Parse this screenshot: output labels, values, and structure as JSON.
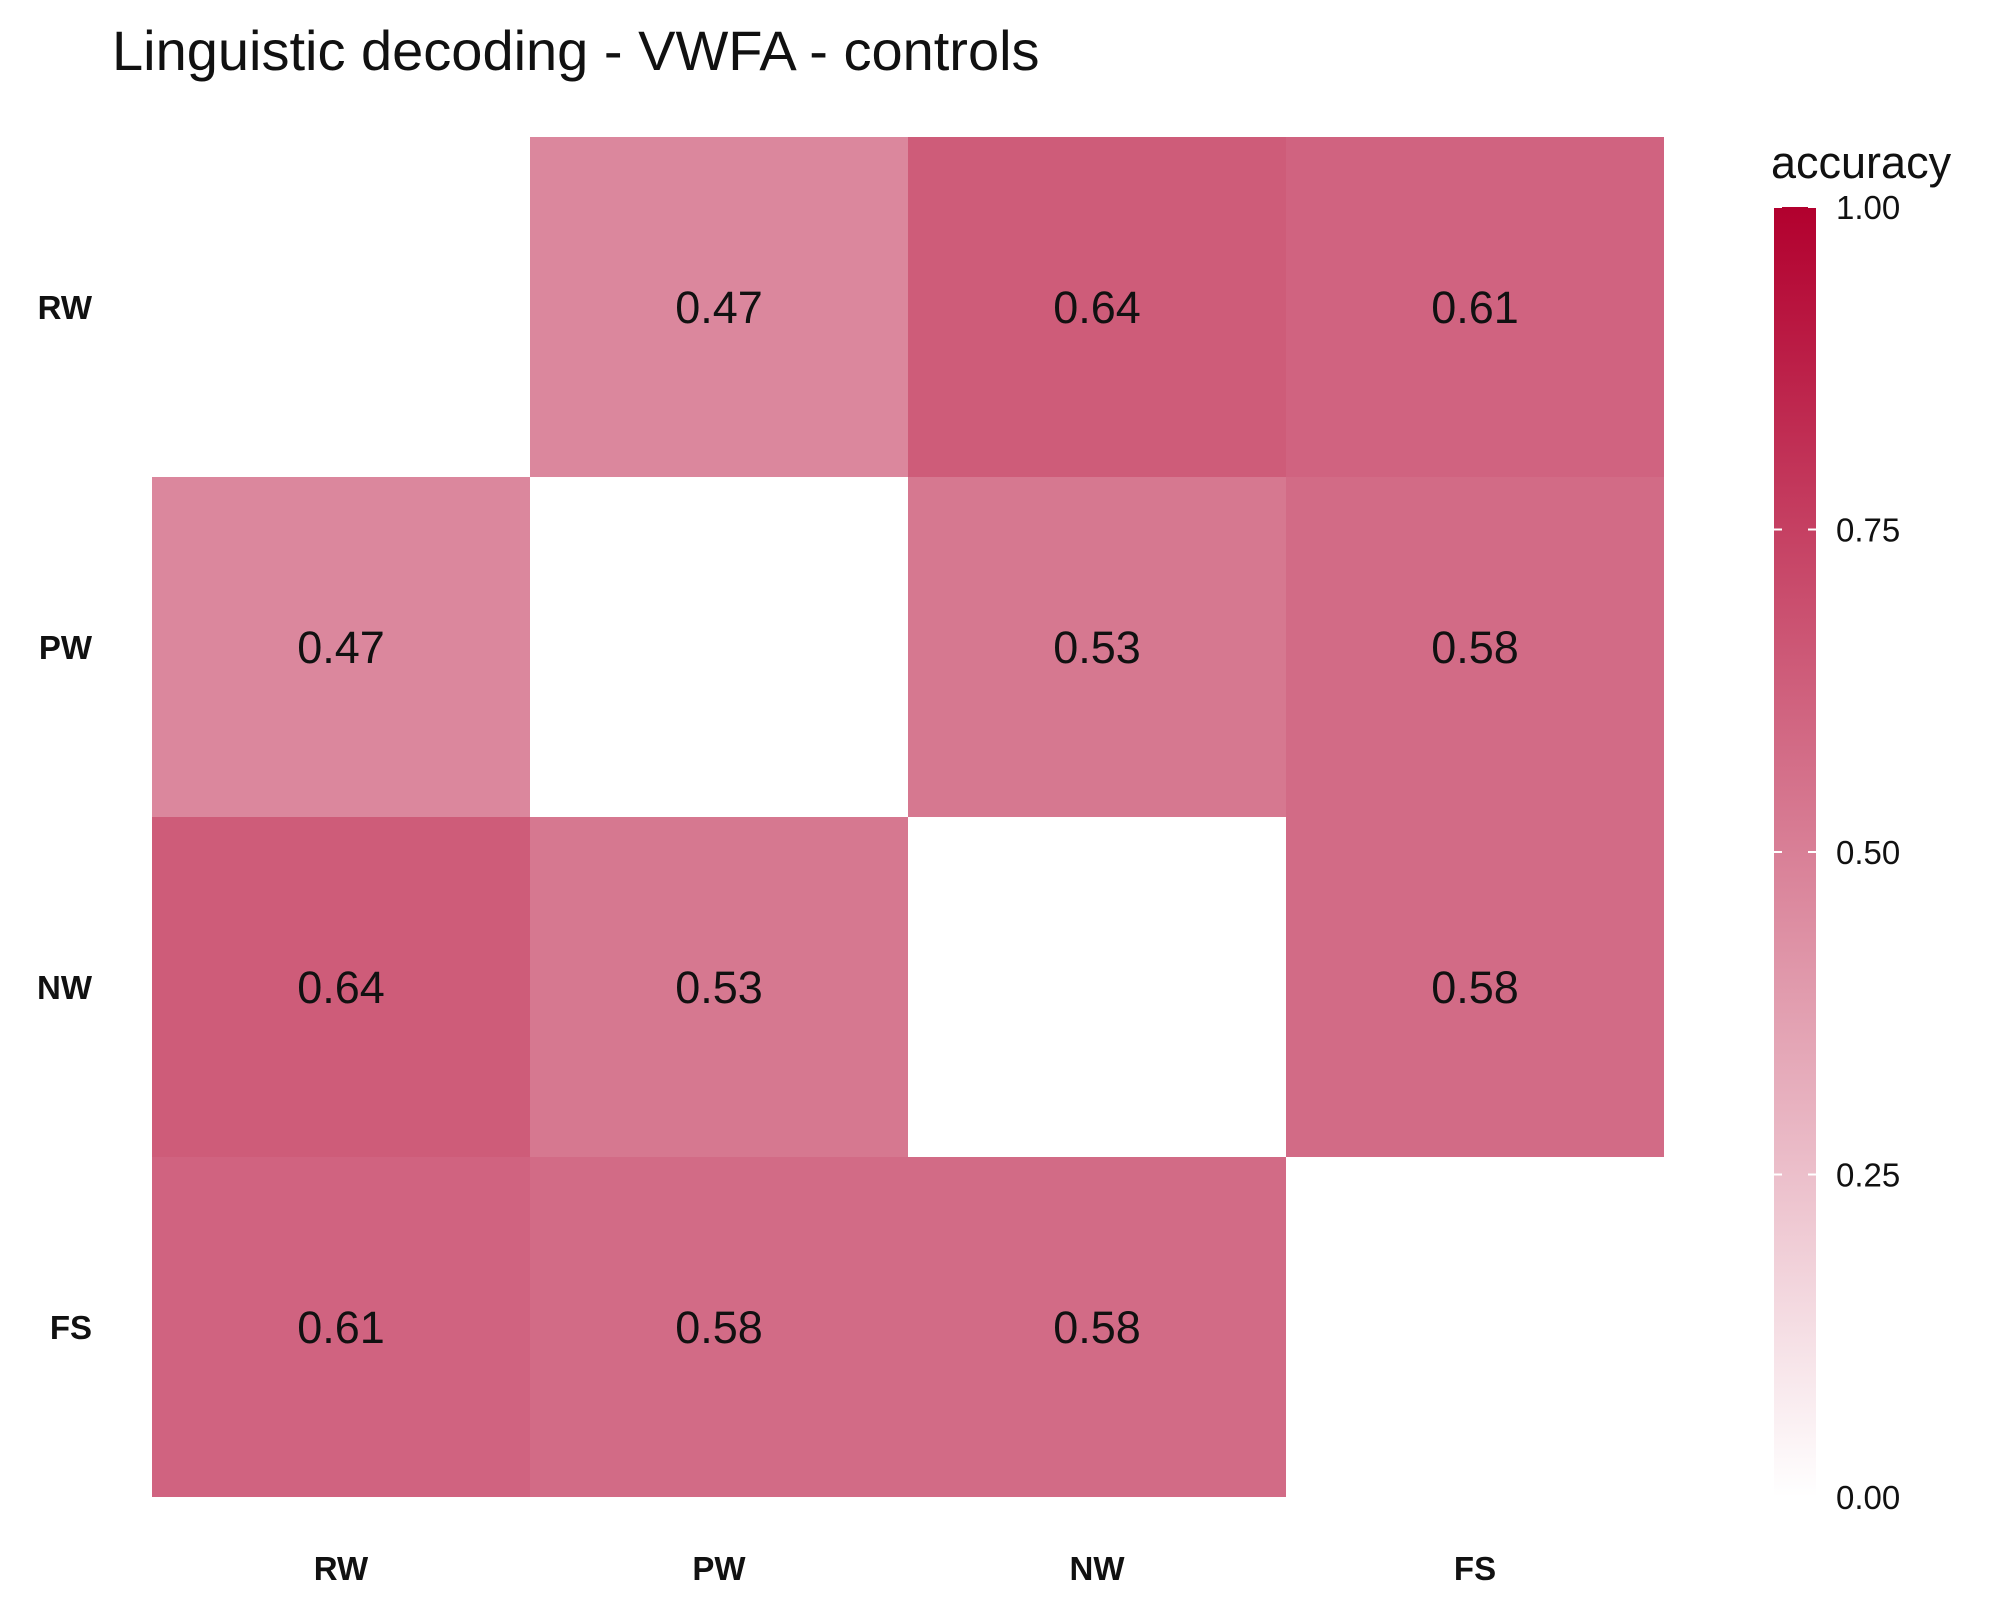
{
  "chart_data": {
    "type": "heatmap",
    "title": "Linguistic decoding - VWFA - controls",
    "x_categories": [
      "RW",
      "PW",
      "NW",
      "FS"
    ],
    "y_categories": [
      "RW",
      "PW",
      "NW",
      "FS"
    ],
    "values": [
      [
        null,
        0.47,
        0.64,
        0.61
      ],
      [
        0.47,
        null,
        0.53,
        0.58
      ],
      [
        0.64,
        0.53,
        null,
        0.58
      ],
      [
        0.61,
        0.58,
        0.58,
        null
      ]
    ],
    "value_labels": [
      [
        null,
        "0.47",
        "0.64",
        "0.61"
      ],
      [
        "0.47",
        null,
        "0.53",
        "0.58"
      ],
      [
        "0.64",
        "0.53",
        null,
        "0.58"
      ],
      [
        "0.61",
        "0.58",
        "0.58",
        null
      ]
    ],
    "legend": {
      "title": "accuracy",
      "range": [
        0,
        1
      ],
      "ticks": [
        "0.00",
        "0.25",
        "0.50",
        "0.75",
        "1.00"
      ],
      "color_low": "#ffffff",
      "color_high": "#b2002e",
      "placement": "right"
    }
  }
}
